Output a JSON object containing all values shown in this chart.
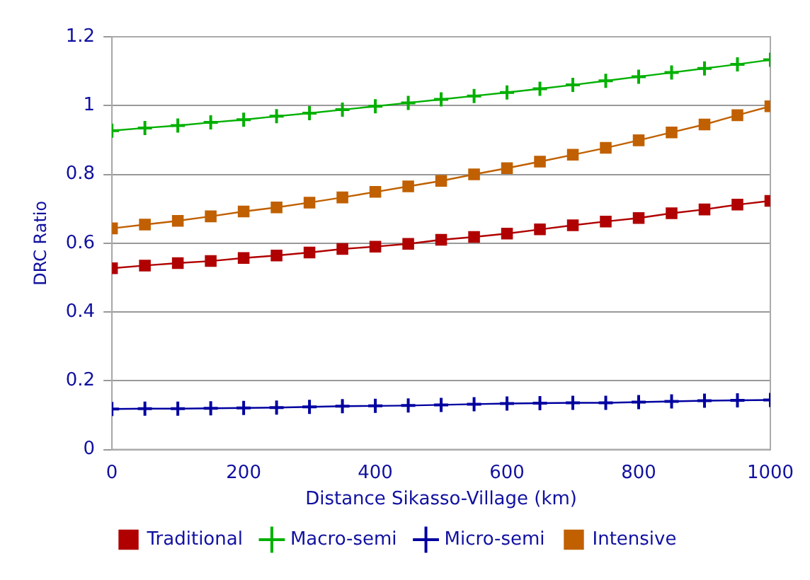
{
  "chart_data": {
    "type": "line",
    "xlabel": "Distance Sikasso-Village (km)",
    "ylabel": "DRC Ratio",
    "x": [
      0,
      50,
      100,
      150,
      200,
      250,
      300,
      350,
      400,
      450,
      500,
      550,
      600,
      650,
      700,
      750,
      800,
      850,
      900,
      950,
      1000
    ],
    "xlim": [
      0,
      1000
    ],
    "xticks": [
      0,
      200,
      400,
      600,
      800,
      1000
    ],
    "ylim": [
      0,
      1.2
    ],
    "yticks": [
      0,
      0.2,
      0.4,
      0.6,
      0.8,
      1,
      1.2
    ],
    "grid": "y",
    "legend": "bottom",
    "series": [
      {
        "name": "Traditional",
        "color": "#b00000",
        "marker": "square",
        "values": [
          0.527,
          0.535,
          0.542,
          0.548,
          0.557,
          0.564,
          0.573,
          0.583,
          0.59,
          0.598,
          0.61,
          0.618,
          0.628,
          0.64,
          0.652,
          0.663,
          0.673,
          0.687,
          0.698,
          0.712,
          0.723
        ]
      },
      {
        "name": "Macro-semi",
        "color": "#00b000",
        "marker": "cross",
        "values": [
          0.927,
          0.935,
          0.942,
          0.951,
          0.959,
          0.969,
          0.978,
          0.988,
          0.998,
          1.008,
          1.018,
          1.028,
          1.038,
          1.049,
          1.06,
          1.072,
          1.084,
          1.096,
          1.108,
          1.12,
          1.133
        ]
      },
      {
        "name": "Micro-semi",
        "color": "#0000a0",
        "marker": "cross",
        "values": [
          0.118,
          0.119,
          0.119,
          0.12,
          0.121,
          0.122,
          0.124,
          0.126,
          0.127,
          0.128,
          0.13,
          0.132,
          0.134,
          0.135,
          0.136,
          0.136,
          0.138,
          0.14,
          0.142,
          0.143,
          0.144
        ]
      },
      {
        "name": "Intensive",
        "color": "#c06000",
        "marker": "square",
        "values": [
          0.643,
          0.654,
          0.665,
          0.678,
          0.692,
          0.704,
          0.718,
          0.733,
          0.749,
          0.765,
          0.781,
          0.8,
          0.818,
          0.837,
          0.857,
          0.877,
          0.899,
          0.922,
          0.945,
          0.972,
          0.998
        ]
      }
    ]
  }
}
